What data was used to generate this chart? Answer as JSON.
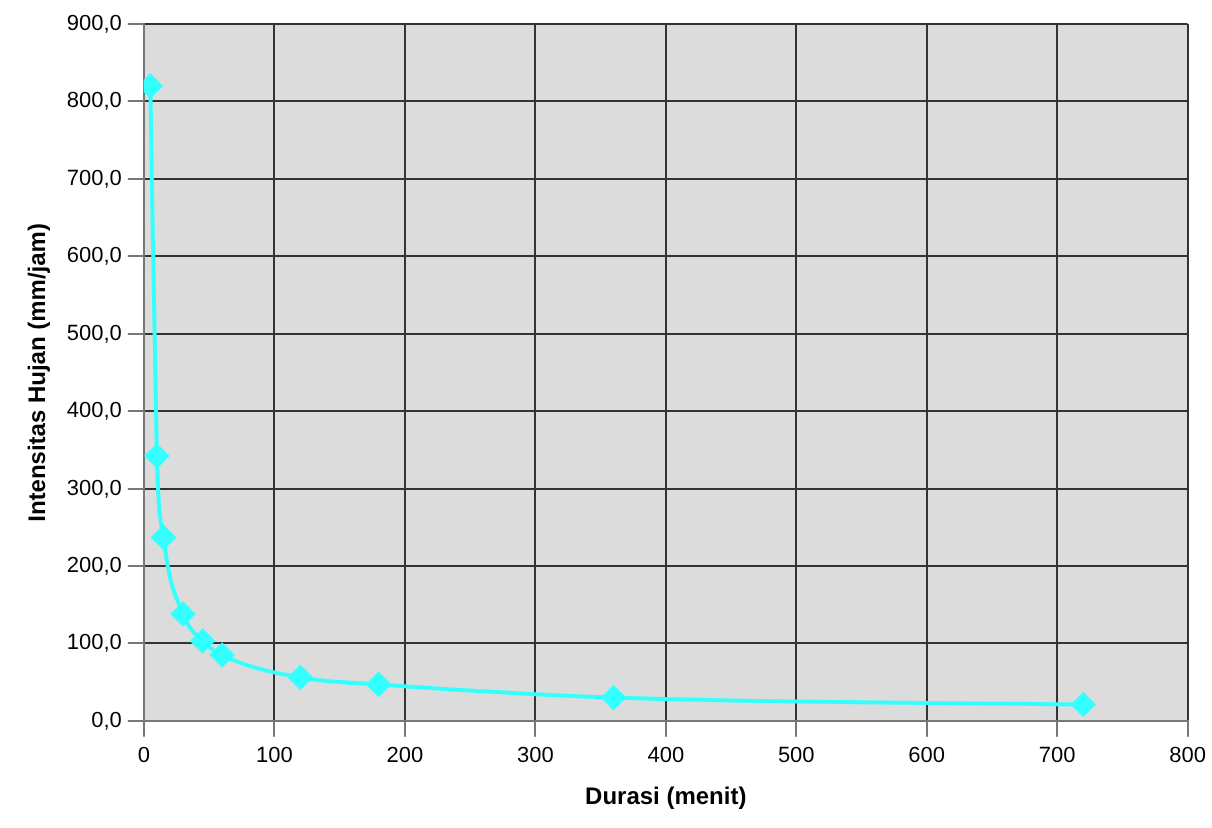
{
  "chart_data": {
    "type": "line",
    "xlabel": "Durasi (menit)",
    "ylabel": "Intensitas Hujan (mm/jam)",
    "x": [
      5,
      10,
      15,
      30,
      45,
      60,
      120,
      180,
      360,
      720
    ],
    "series": [
      {
        "color": "#33ffff",
        "values": [
          820,
          342,
          237,
          138,
          103,
          85,
          56,
          47,
          30,
          21
        ]
      }
    ],
    "xlim": [
      0,
      800
    ],
    "xticks": [
      0,
      100,
      200,
      300,
      400,
      500,
      600,
      700,
      800
    ],
    "ylim": [
      0,
      900
    ],
    "yticks": [
      {
        "value": 0,
        "label": "0,0"
      },
      {
        "value": 100,
        "label": "100,0"
      },
      {
        "value": 200,
        "label": "200,0"
      },
      {
        "value": 300,
        "label": "300,0"
      },
      {
        "value": 400,
        "label": "400,0"
      },
      {
        "value": 500,
        "label": "500,0"
      },
      {
        "value": 600,
        "label": "600,0"
      },
      {
        "value": 700,
        "label": "700,0"
      },
      {
        "value": 800,
        "label": "800,0"
      },
      {
        "value": 900,
        "label": "900,0"
      }
    ],
    "grid": true,
    "legend": false,
    "marker": "diamond",
    "line_style": "solid"
  }
}
